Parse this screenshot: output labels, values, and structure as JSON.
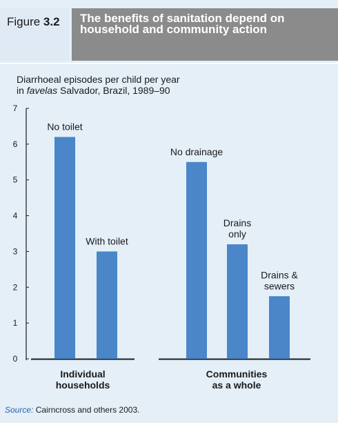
{
  "figure": {
    "label_prefix": "Figure",
    "label_number": "3.2",
    "title": "The benefits of sanitation depend on household and community action"
  },
  "subtitle": {
    "line1": "Diarrhoeal episodes per child per year",
    "line2_italic": "favelas",
    "line2_prefix": "in",
    "line2_suffix": "in Salvador, Brazil, 1989–90"
  },
  "chart_data": {
    "type": "bar",
    "ylim": [
      0,
      7
    ],
    "yticks": [
      "0",
      "1",
      "2",
      "3",
      "4",
      "5",
      "6",
      "7"
    ],
    "groups": [
      {
        "name_lines": [
          "Individual",
          "households"
        ],
        "bars": [
          {
            "label_lines": [
              "No toilet"
            ],
            "value": 6.2
          },
          {
            "label_lines": [
              "With toilet"
            ],
            "value": 3.0
          }
        ]
      },
      {
        "name_lines": [
          "Communities",
          "as a whole"
        ],
        "bars": [
          {
            "label_lines": [
              "No drainage"
            ],
            "value": 5.5
          },
          {
            "label_lines": [
              "Drains",
              "only"
            ],
            "value": 3.2
          },
          {
            "label_lines": [
              "Drains &",
              "sewers"
            ],
            "value": 1.75
          }
        ]
      }
    ],
    "bar_color": "#4a86c8"
  },
  "source": {
    "prefix": "Source:",
    "text": "Cairncross and others 2003."
  },
  "colors": {
    "background": "#e4eff8",
    "title_box": "#8b8b8b",
    "bar": "#4a86c8",
    "source_prefix": "#2a63b0"
  }
}
